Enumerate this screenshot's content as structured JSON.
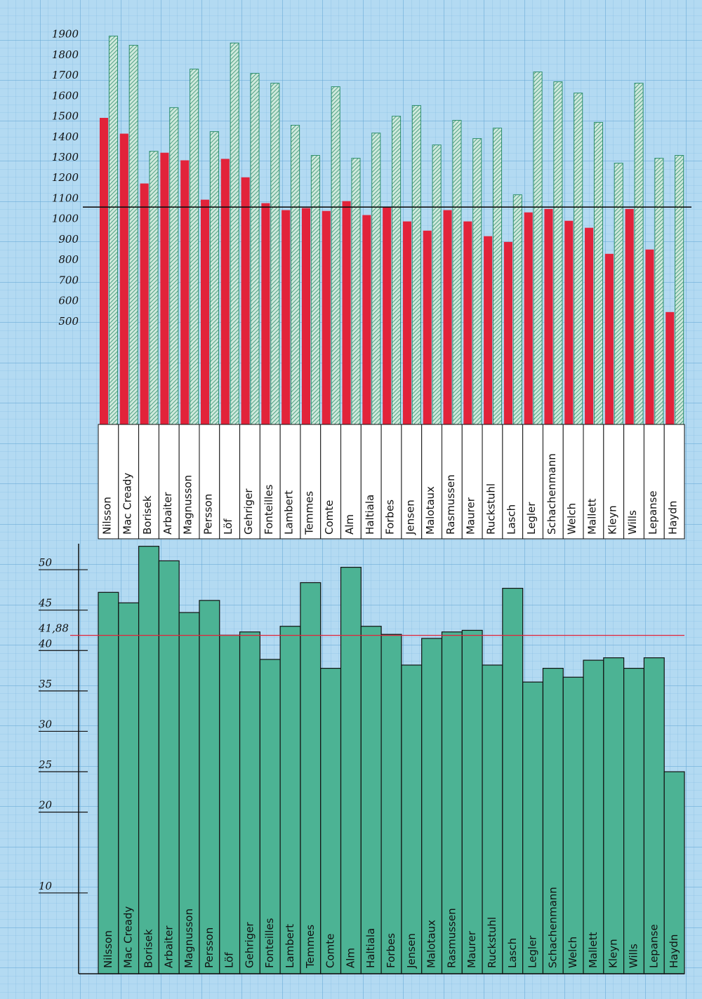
{
  "chart_data": [
    {
      "type": "bar",
      "categories": [
        "Nilsson",
        "Mac Cready",
        "Borisek",
        "Arbaiter",
        "Magnusson",
        "Persson",
        "Löf",
        "Gehriger",
        "Fonteilles",
        "Lambert",
        "Temmes",
        "Comte",
        "Alm",
        "Haltiala",
        "Forbes",
        "Jensen",
        "Malotaux",
        "Rasmussen",
        "Maurer",
        "Ruckstuhl",
        "Lasch",
        "Legler",
        "Schachenmann",
        "Welch",
        "Mallett",
        "Kleyn",
        "Wills",
        "Lepanse",
        "Haydn"
      ],
      "series": [
        {
          "color": "#e2233a",
          "values": [
            1495,
            1418,
            1175,
            1325,
            1288,
            1096,
            1295,
            1205,
            1079,
            1045,
            1055,
            1041,
            1089,
            1021,
            1058,
            990,
            945,
            1045,
            990,
            918,
            890,
            1034,
            1051,
            993,
            959,
            832,
            1051,
            853,
            548
          ]
        },
        {
          "color": "#2f8f6e",
          "values": [
            1894,
            1849,
            1332,
            1545,
            1733,
            1428,
            1860,
            1712,
            1664,
            1459,
            1312,
            1647,
            1298,
            1421,
            1503,
            1555,
            1363,
            1483,
            1394,
            1445,
            1120,
            1719,
            1671,
            1616,
            1473,
            1274,
            1664,
            1298,
            1312
          ]
        }
      ],
      "ylim": [
        0,
        1950
      ],
      "yticks": [
        500,
        600,
        700,
        800,
        900,
        1000,
        1100,
        1200,
        1300,
        1400,
        1500,
        1600,
        1700,
        1800,
        1900
      ],
      "reference_line": 1060
    },
    {
      "type": "bar",
      "categories": [
        "Nilsson",
        "Mac Cready",
        "Borisek",
        "Arbaiter",
        "Magnusson",
        "Persson",
        "Löf",
        "Gehriger",
        "Fonteilles",
        "Lambert",
        "Temmes",
        "Comte",
        "Alm",
        "Haltiala",
        "Forbes",
        "Jensen",
        "Malotaux",
        "Rasmussen",
        "Maurer",
        "Ruckstuhl",
        "Lasch",
        "Legler",
        "Schachenmann",
        "Welch",
        "Mallett",
        "Kleyn",
        "Wills",
        "Lepanse",
        "Haydn"
      ],
      "values": [
        47.2,
        45.9,
        52.9,
        51.1,
        44.7,
        46.2,
        41.9,
        42.3,
        38.9,
        43.0,
        48.4,
        37.8,
        50.3,
        43.0,
        42.0,
        38.2,
        41.5,
        42.3,
        42.5,
        38.2,
        47.7,
        36.1,
        37.8,
        36.7,
        38.8,
        39.1,
        37.8,
        39.1,
        25.0
      ],
      "color": "#4cb394",
      "ylim": [
        0,
        54
      ],
      "yticks": [
        10,
        20,
        25,
        30,
        35,
        40,
        45,
        50
      ],
      "reference_line": {
        "value": 41.88,
        "label": "41,88"
      }
    }
  ]
}
